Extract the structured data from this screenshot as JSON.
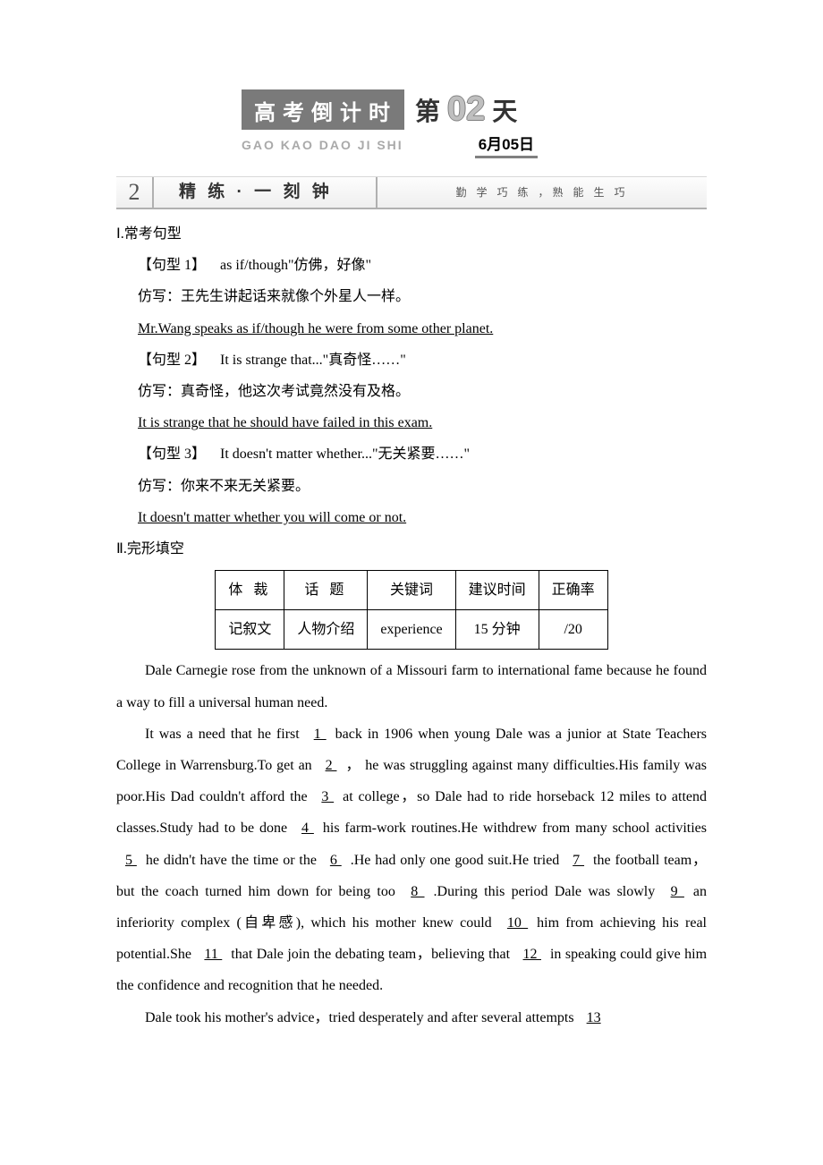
{
  "header": {
    "title": "高考倒计时",
    "pinyin": "GAO KAO DAO JI SHI",
    "di": "第",
    "number": "02",
    "tian": "天",
    "date": "6月05日"
  },
  "section": {
    "number": "2",
    "title": "精 练 · 一 刻 钟",
    "motto": "勤 学 巧 练 ，熟 能 生 巧"
  },
  "part1": {
    "heading": "Ⅰ.常考句型",
    "pattern1_label": "【句型 1】",
    "pattern1_text": "as if/though\"仿佛，好像\"",
    "imitation1_label": "仿写：",
    "imitation1_text": "王先生讲起话来就像个外星人一样。",
    "answer1": "Mr.Wang speaks as if/though he were from some other planet.",
    "pattern2_label": "【句型 2】",
    "pattern2_text": "It is strange that...\"真奇怪……\"",
    "imitation2_label": "仿写：",
    "imitation2_text": "真奇怪，他这次考试竟然没有及格。",
    "answer2": "It is strange that he should have failed in this exam.",
    "pattern3_label": "【句型 3】",
    "pattern3_text": "It doesn't matter whether...\"无关紧要……\"",
    "imitation3_label": "仿写：",
    "imitation3_text": "你来不来无关紧要。",
    "answer3": "It doesn't matter whether you will come or not."
  },
  "part2": {
    "heading": "Ⅱ.完形填空",
    "table": {
      "headers": [
        "体 裁",
        "话 题",
        "关键词",
        "建议时间",
        "正确率"
      ],
      "row": [
        "记叙文",
        "人物介绍",
        "experience",
        "15 分钟",
        "/20"
      ]
    },
    "paragraphs": {
      "p1": "Dale Carnegie rose from the unknown of a Missouri farm to international fame because he found a way to fill a universal human need.",
      "p2a": "It was a need that he first ",
      "p2b": " back in 1906 when young Dale was a junior at State Teachers College in Warrensburg.To get an ",
      "p2c": "， he was struggling against many difficulties.His family was poor.His Dad couldn't afford the ",
      "p2d": " at college，so Dale had to ride horseback 12 miles to attend classes.Study had to be done ",
      "p2e": " his farm-work routines.He withdrew from many school activities ",
      "p2f": " he didn't have the time or the ",
      "p2g": ".He had only one good suit.He tried ",
      "p2h": " the football team，but the coach turned him down for being too ",
      "p2i": ".During this period Dale was slowly ",
      "p2j": " an inferiority complex (自卑感), which his mother knew could ",
      "p2k": " him from achieving his real potential.She ",
      "p2l": " that Dale join the debating team，believing that ",
      "p2m": " in speaking could give him the confidence and recognition that he needed.",
      "p3a": "Dale took his mother's advice，tried desperately and after several attempts "
    },
    "blanks": {
      "b1": "  1  ",
      "b2": "  2  ",
      "b3": "  3  ",
      "b4": "  4  ",
      "b5": "5  ",
      "b6": "  6  ",
      "b7": "7  ",
      "b8": "  8  ",
      "b9": "  9  ",
      "b10": "  10  ",
      "b11": "  11  ",
      "b12": "  12  ",
      "b13": "  13  "
    }
  }
}
